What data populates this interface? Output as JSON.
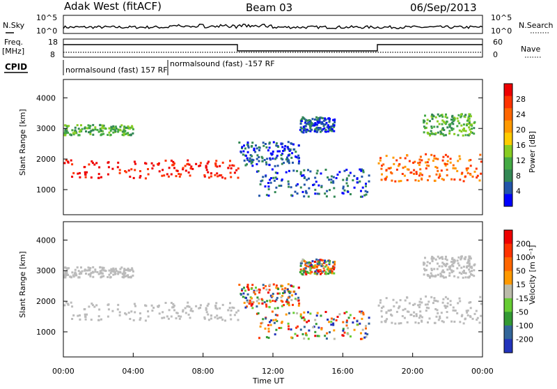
{
  "header": {
    "station": "Adak West (fitACF)",
    "beam": "Beam 03",
    "date": "06/Sep/2013"
  },
  "panels": {
    "nsky_label": "N.Sky",
    "nsearch_label": "N.Search",
    "nsky_ticks": [
      "10^5",
      "10^0"
    ],
    "nsearch_ticks": [
      "10^5",
      "10^0"
    ],
    "freq_label": "Freq.",
    "freq_unit": "[MHz]",
    "freq_ticks": [
      "18",
      "8"
    ],
    "nave_label": "Nave",
    "nave_ticks": [
      "60",
      "0"
    ],
    "cpid_label": "CPID",
    "cpid_texts": [
      "normalsound (fast) 157 RF",
      "normalsound (fast) -157 RF"
    ]
  },
  "colors": {
    "power_scale": [
      "#0000ff",
      "#2255aa",
      "#338855",
      "#44aa44",
      "#88cc22",
      "#ffcc00",
      "#ff9900",
      "#ff6600",
      "#ff3300",
      "#ee0000"
    ],
    "velocity_scale": [
      "#2233bb",
      "#336699",
      "#339933",
      "#66cc33",
      "#bbbbaa",
      "#ff9900",
      "#ff6600",
      "#ff3300",
      "#ee0000"
    ],
    "ground_scatter": "#bbbbbb"
  },
  "chart_data": [
    {
      "type": "heatmap",
      "name": "power",
      "ylabel": "Slant Range [km]",
      "yticks": [
        "1000",
        "2000",
        "3000",
        "4000"
      ],
      "ylim": [
        180,
        4600
      ],
      "colorbar_label": "Power [dB]",
      "colorbar_ticks": [
        "4",
        "8",
        "12",
        "16",
        "20",
        "24",
        "28"
      ],
      "xlim": [
        "00:00",
        "24:00"
      ],
      "bands": [
        {
          "t": [
            0,
            10
          ],
          "range": [
            1400,
            2000
          ],
          "level": "28"
        },
        {
          "t": [
            0,
            4
          ],
          "range": [
            2800,
            3150
          ],
          "level": "12"
        },
        {
          "t": [
            10,
            13.5
          ],
          "range": [
            1800,
            2600
          ],
          "level": "8"
        },
        {
          "t": [
            13.5,
            15.5
          ],
          "range": [
            2900,
            3400
          ],
          "level": "8"
        },
        {
          "t": [
            11,
            17.5
          ],
          "range": [
            800,
            1700
          ],
          "level": "8"
        },
        {
          "t": [
            18,
            24
          ],
          "range": [
            1300,
            2200
          ],
          "level": "24"
        },
        {
          "t": [
            20.5,
            23.5
          ],
          "range": [
            2800,
            3500
          ],
          "level": "12"
        }
      ]
    },
    {
      "type": "heatmap",
      "name": "velocity",
      "ylabel": "Slant Range [km]",
      "yticks": [
        "1000",
        "2000",
        "3000",
        "4000"
      ],
      "ylim": [
        180,
        4600
      ],
      "colorbar_label": "Velocity [m s⁻¹]",
      "colorbar_ticks": [
        "200",
        "100",
        "50",
        "15",
        "-15",
        "-50",
        "-100",
        "-200"
      ],
      "xlim": [
        "00:00",
        "24:00"
      ],
      "xticks": [
        "00:00",
        "04:00",
        "08:00",
        "12:00",
        "16:00",
        "20:00",
        "00:00"
      ],
      "xlabel": "Time UT"
    }
  ]
}
